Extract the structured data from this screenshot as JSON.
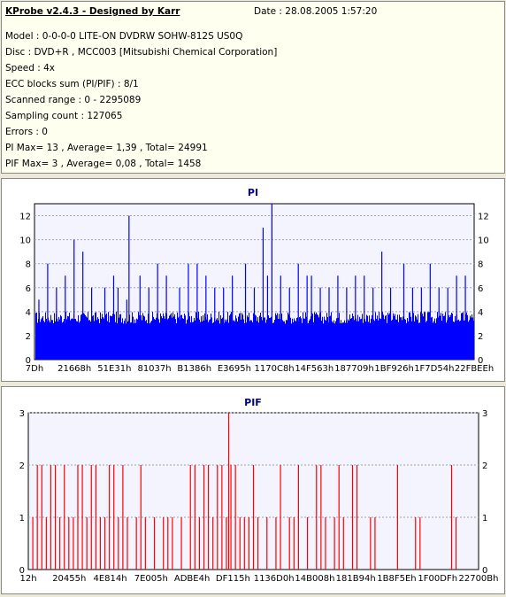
{
  "header": {
    "title": "KProbe v2.4.3 - Designed by Karr",
    "date": "Date : 28.08.2005 1:57:20",
    "lines": [
      "Model : 0-0-0-0 LITE-ON DVDRW SOHW-812S  US0Q",
      "Disc : DVD+R , MCC003 [Mitsubishi Chemical Corporation]",
      "Speed : 4x",
      "ECC blocks sum (PI/PIF) : 8/1",
      "Scanned range : 0 - 2295089",
      "Sampling count : 127065",
      "Errors : 0",
      "PI Max= 13 , Average= 1,39 , Total= 24991",
      "PIF Max= 3 , Average= 0,08 , Total= 1458"
    ]
  },
  "colors": {
    "pi": "#0000ff",
    "pif": "#ff0000",
    "pi_title": "#0000aa",
    "pif_title": "#000088"
  },
  "chart_data": [
    {
      "type": "bar",
      "title": "PI",
      "ylim": [
        0,
        13
      ],
      "yticks": [
        0,
        2,
        4,
        6,
        8,
        10,
        12
      ],
      "x_tick_labels": [
        "7Dh",
        "21668h",
        "51E31h",
        "81037h",
        "B1386h",
        "E3695h",
        "1170C8h",
        "14F563h",
        "187709h",
        "1BF926h",
        "1F7D54h",
        "22FBEEh"
      ],
      "grid": true,
      "baseline_range": [
        3,
        4
      ],
      "spikes": [
        {
          "x": 0.01,
          "v": 5
        },
        {
          "x": 0.03,
          "v": 8
        },
        {
          "x": 0.05,
          "v": 6
        },
        {
          "x": 0.07,
          "v": 7
        },
        {
          "x": 0.09,
          "v": 10
        },
        {
          "x": 0.11,
          "v": 9
        },
        {
          "x": 0.13,
          "v": 6
        },
        {
          "x": 0.16,
          "v": 6
        },
        {
          "x": 0.18,
          "v": 7
        },
        {
          "x": 0.19,
          "v": 6
        },
        {
          "x": 0.21,
          "v": 5
        },
        {
          "x": 0.215,
          "v": 12
        },
        {
          "x": 0.24,
          "v": 7
        },
        {
          "x": 0.26,
          "v": 6
        },
        {
          "x": 0.28,
          "v": 8
        },
        {
          "x": 0.3,
          "v": 7
        },
        {
          "x": 0.33,
          "v": 6
        },
        {
          "x": 0.35,
          "v": 8
        },
        {
          "x": 0.37,
          "v": 8
        },
        {
          "x": 0.39,
          "v": 7
        },
        {
          "x": 0.41,
          "v": 6
        },
        {
          "x": 0.43,
          "v": 6
        },
        {
          "x": 0.45,
          "v": 7
        },
        {
          "x": 0.48,
          "v": 8
        },
        {
          "x": 0.5,
          "v": 6
        },
        {
          "x": 0.52,
          "v": 11
        },
        {
          "x": 0.53,
          "v": 7
        },
        {
          "x": 0.54,
          "v": 13
        },
        {
          "x": 0.56,
          "v": 7
        },
        {
          "x": 0.58,
          "v": 6
        },
        {
          "x": 0.6,
          "v": 8
        },
        {
          "x": 0.62,
          "v": 7
        },
        {
          "x": 0.63,
          "v": 7
        },
        {
          "x": 0.65,
          "v": 6
        },
        {
          "x": 0.67,
          "v": 6
        },
        {
          "x": 0.69,
          "v": 7
        },
        {
          "x": 0.71,
          "v": 6
        },
        {
          "x": 0.73,
          "v": 7
        },
        {
          "x": 0.75,
          "v": 7
        },
        {
          "x": 0.77,
          "v": 6
        },
        {
          "x": 0.79,
          "v": 9
        },
        {
          "x": 0.81,
          "v": 6
        },
        {
          "x": 0.84,
          "v": 8
        },
        {
          "x": 0.86,
          "v": 6
        },
        {
          "x": 0.88,
          "v": 6
        },
        {
          "x": 0.9,
          "v": 8
        },
        {
          "x": 0.92,
          "v": 6
        },
        {
          "x": 0.94,
          "v": 6
        },
        {
          "x": 0.96,
          "v": 7
        },
        {
          "x": 0.98,
          "v": 7
        }
      ]
    },
    {
      "type": "bar",
      "title": "PIF",
      "ylim": [
        0,
        3
      ],
      "yticks": [
        0,
        1,
        2,
        3
      ],
      "x_tick_labels": [
        "12h",
        "20455h",
        "4E814h",
        "7E005h",
        "ADBE4h",
        "DF115h",
        "1136D0h",
        "14B008h",
        "181B94h",
        "1B8F5Eh",
        "1F00DFh",
        "22700Bh"
      ],
      "grid": true,
      "spikes": [
        {
          "x": 0.01,
          "v": 1
        },
        {
          "x": 0.02,
          "v": 2
        },
        {
          "x": 0.03,
          "v": 2
        },
        {
          "x": 0.04,
          "v": 1
        },
        {
          "x": 0.05,
          "v": 2
        },
        {
          "x": 0.06,
          "v": 2
        },
        {
          "x": 0.07,
          "v": 1
        },
        {
          "x": 0.08,
          "v": 2
        },
        {
          "x": 0.09,
          "v": 1
        },
        {
          "x": 0.1,
          "v": 1
        },
        {
          "x": 0.11,
          "v": 2
        },
        {
          "x": 0.12,
          "v": 2
        },
        {
          "x": 0.13,
          "v": 1
        },
        {
          "x": 0.14,
          "v": 2
        },
        {
          "x": 0.15,
          "v": 2
        },
        {
          "x": 0.16,
          "v": 1
        },
        {
          "x": 0.17,
          "v": 1
        },
        {
          "x": 0.18,
          "v": 2
        },
        {
          "x": 0.19,
          "v": 2
        },
        {
          "x": 0.2,
          "v": 1
        },
        {
          "x": 0.21,
          "v": 2
        },
        {
          "x": 0.22,
          "v": 1
        },
        {
          "x": 0.24,
          "v": 1
        },
        {
          "x": 0.25,
          "v": 2
        },
        {
          "x": 0.26,
          "v": 1
        },
        {
          "x": 0.28,
          "v": 1
        },
        {
          "x": 0.3,
          "v": 1
        },
        {
          "x": 0.31,
          "v": 1
        },
        {
          "x": 0.32,
          "v": 1
        },
        {
          "x": 0.34,
          "v": 1
        },
        {
          "x": 0.36,
          "v": 2
        },
        {
          "x": 0.37,
          "v": 2
        },
        {
          "x": 0.38,
          "v": 1
        },
        {
          "x": 0.39,
          "v": 2
        },
        {
          "x": 0.4,
          "v": 2
        },
        {
          "x": 0.41,
          "v": 1
        },
        {
          "x": 0.42,
          "v": 2
        },
        {
          "x": 0.43,
          "v": 2
        },
        {
          "x": 0.44,
          "v": 1
        },
        {
          "x": 0.445,
          "v": 3
        },
        {
          "x": 0.45,
          "v": 2
        },
        {
          "x": 0.46,
          "v": 2
        },
        {
          "x": 0.47,
          "v": 1
        },
        {
          "x": 0.48,
          "v": 1
        },
        {
          "x": 0.49,
          "v": 1
        },
        {
          "x": 0.5,
          "v": 2
        },
        {
          "x": 0.51,
          "v": 1
        },
        {
          "x": 0.53,
          "v": 1
        },
        {
          "x": 0.55,
          "v": 1
        },
        {
          "x": 0.56,
          "v": 2
        },
        {
          "x": 0.58,
          "v": 1
        },
        {
          "x": 0.59,
          "v": 1
        },
        {
          "x": 0.6,
          "v": 2
        },
        {
          "x": 0.62,
          "v": 1
        },
        {
          "x": 0.64,
          "v": 2
        },
        {
          "x": 0.65,
          "v": 2
        },
        {
          "x": 0.66,
          "v": 1
        },
        {
          "x": 0.68,
          "v": 1
        },
        {
          "x": 0.69,
          "v": 2
        },
        {
          "x": 0.7,
          "v": 1
        },
        {
          "x": 0.72,
          "v": 2
        },
        {
          "x": 0.73,
          "v": 2
        },
        {
          "x": 0.76,
          "v": 1
        },
        {
          "x": 0.77,
          "v": 1
        },
        {
          "x": 0.82,
          "v": 2
        },
        {
          "x": 0.86,
          "v": 1
        },
        {
          "x": 0.87,
          "v": 1
        },
        {
          "x": 0.94,
          "v": 2
        },
        {
          "x": 0.95,
          "v": 1
        }
      ]
    }
  ]
}
